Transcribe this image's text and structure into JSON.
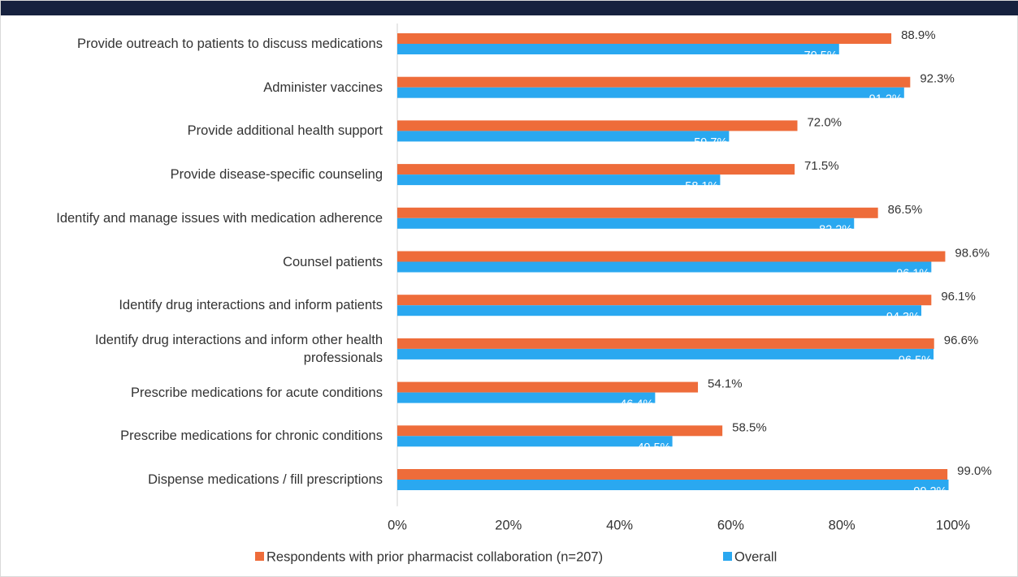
{
  "chart_data": {
    "type": "bar",
    "orientation": "horizontal",
    "categories": [
      "Provide outreach to patients to discuss medications",
      "Administer vaccines",
      "Provide additional health support",
      "Provide disease-specific counseling",
      "Identify and manage issues with medication adherence",
      "Counsel patients",
      "Identify drug interactions and inform patients",
      "Identify drug interactions and inform other health professionals",
      "Prescribe medications for acute conditions",
      "Prescribe medications for chronic conditions",
      "Dispense medications / fill prescriptions"
    ],
    "series": [
      {
        "name": "Respondents with prior pharmacist collaboration (n=207)",
        "color": "#ee6c3a",
        "values": [
          88.9,
          92.3,
          72.0,
          71.5,
          86.5,
          98.6,
          96.1,
          96.6,
          54.1,
          58.5,
          99.0
        ],
        "value_labels": [
          "88.9%",
          "92.3%",
          "72.0%",
          "71.5%",
          "86.5%",
          "98.6%",
          "96.1%",
          "96.6%",
          "54.1%",
          "58.5%",
          "99.0%"
        ]
      },
      {
        "name": "Overall",
        "color": "#2aa8f0",
        "values": [
          79.5,
          91.2,
          59.7,
          58.1,
          82.2,
          96.1,
          94.3,
          96.5,
          46.4,
          49.5,
          99.2
        ],
        "value_labels": [
          "79.5%",
          "91.2%",
          "59.7%",
          "58.1%",
          "82.2%",
          "96.1%",
          "94.3%",
          "96.5%",
          "46.4%",
          "49.5%",
          "99.2%"
        ]
      }
    ],
    "xlim": [
      0,
      100
    ],
    "xticks": [
      {
        "value": 0,
        "label": "0%"
      },
      {
        "value": 20,
        "label": "20%"
      },
      {
        "value": 40,
        "label": "40%"
      },
      {
        "value": 60,
        "label": "60%"
      },
      {
        "value": 80,
        "label": "80%"
      },
      {
        "value": 100,
        "label": "100%"
      }
    ],
    "legend": "bottom"
  }
}
